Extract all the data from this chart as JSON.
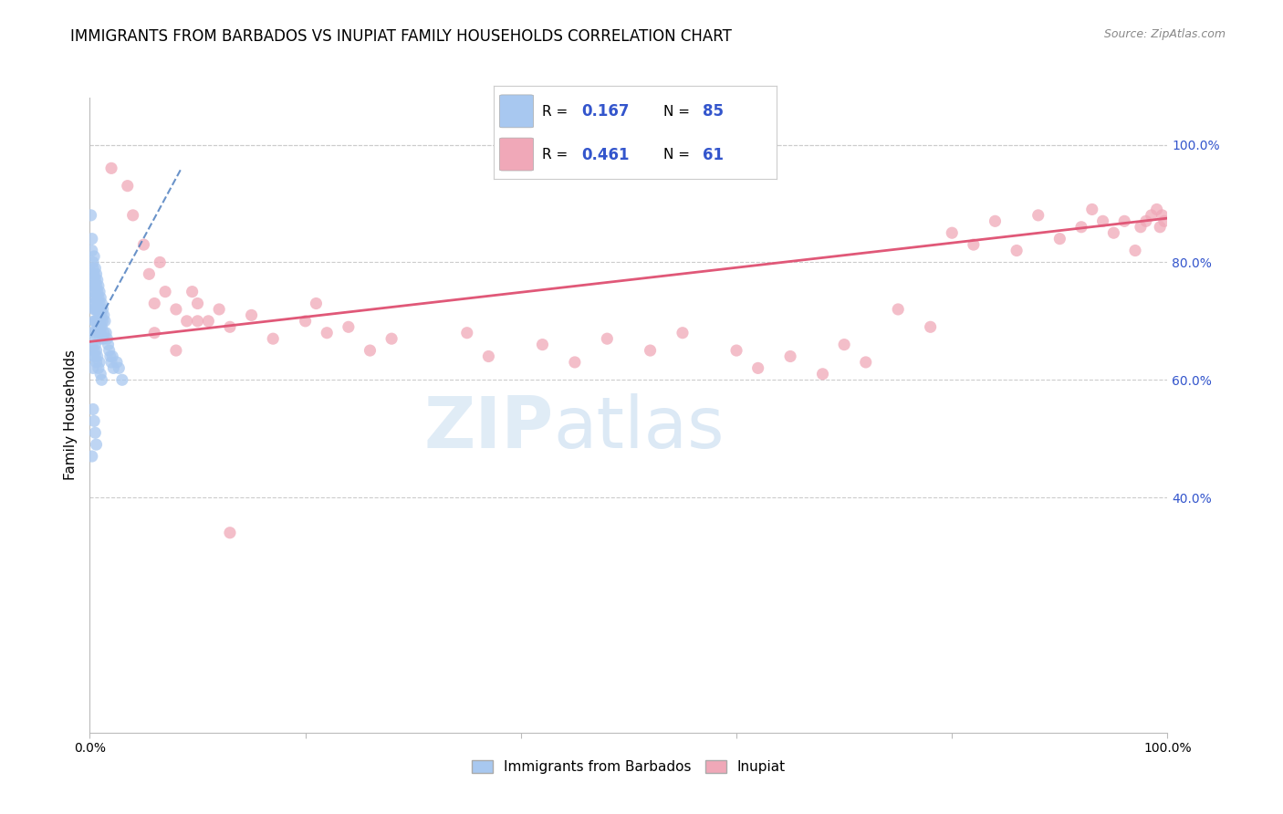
{
  "title": "IMMIGRANTS FROM BARBADOS VS INUPIAT FAMILY HOUSEHOLDS CORRELATION CHART",
  "source": "Source: ZipAtlas.com",
  "ylabel": "Family Households",
  "legend_label1": "Immigrants from Barbados",
  "legend_label2": "Inupiat",
  "blue_color": "#a8c8f0",
  "pink_color": "#f0a8b8",
  "blue_line_color": "#5080c0",
  "pink_line_color": "#e05878",
  "xmin": 0.0,
  "xmax": 1.0,
  "ymin": 0.0,
  "ymax": 1.08,
  "grid_color": "#cccccc",
  "bg_color": "#ffffff",
  "title_fontsize": 12,
  "label_fontsize": 11,
  "tick_fontsize": 10,
  "legend_r1": "0.167",
  "legend_n1": "85",
  "legend_r2": "0.461",
  "legend_n2": "61",
  "blue_trend": [
    0.001,
    0.675,
    0.085,
    0.96
  ],
  "pink_trend": [
    0.0,
    0.665,
    1.0,
    0.875
  ],
  "ytick_values": [
    0.4,
    0.6,
    0.8,
    1.0
  ],
  "ytick_labels": [
    "40.0%",
    "60.0%",
    "80.0%",
    "100.0%"
  ],
  "blue_x": [
    0.001,
    0.002,
    0.002,
    0.003,
    0.003,
    0.003,
    0.003,
    0.003,
    0.003,
    0.004,
    0.004,
    0.004,
    0.004,
    0.004,
    0.004,
    0.004,
    0.005,
    0.005,
    0.005,
    0.005,
    0.005,
    0.005,
    0.006,
    0.006,
    0.006,
    0.006,
    0.006,
    0.007,
    0.007,
    0.007,
    0.007,
    0.008,
    0.008,
    0.008,
    0.008,
    0.008,
    0.009,
    0.009,
    0.009,
    0.009,
    0.009,
    0.01,
    0.01,
    0.01,
    0.01,
    0.011,
    0.011,
    0.011,
    0.012,
    0.012,
    0.012,
    0.013,
    0.013,
    0.014,
    0.015,
    0.016,
    0.017,
    0.018,
    0.019,
    0.02,
    0.021,
    0.022,
    0.025,
    0.027,
    0.03,
    0.001,
    0.002,
    0.003,
    0.003,
    0.004,
    0.004,
    0.005,
    0.005,
    0.006,
    0.006,
    0.007,
    0.008,
    0.009,
    0.01,
    0.011,
    0.003,
    0.004,
    0.005,
    0.006,
    0.002
  ],
  "blue_y": [
    0.88,
    0.82,
    0.84,
    0.8,
    0.79,
    0.78,
    0.77,
    0.76,
    0.75,
    0.81,
    0.78,
    0.76,
    0.74,
    0.73,
    0.72,
    0.7,
    0.79,
    0.77,
    0.75,
    0.73,
    0.72,
    0.7,
    0.78,
    0.76,
    0.74,
    0.72,
    0.7,
    0.77,
    0.75,
    0.73,
    0.69,
    0.76,
    0.74,
    0.72,
    0.7,
    0.68,
    0.75,
    0.73,
    0.71,
    0.69,
    0.67,
    0.74,
    0.72,
    0.7,
    0.68,
    0.73,
    0.71,
    0.69,
    0.72,
    0.7,
    0.67,
    0.71,
    0.68,
    0.7,
    0.68,
    0.67,
    0.66,
    0.65,
    0.64,
    0.63,
    0.64,
    0.62,
    0.63,
    0.62,
    0.6,
    0.68,
    0.66,
    0.64,
    0.62,
    0.68,
    0.65,
    0.66,
    0.64,
    0.65,
    0.63,
    0.64,
    0.62,
    0.63,
    0.61,
    0.6,
    0.55,
    0.53,
    0.51,
    0.49,
    0.47
  ],
  "pink_x": [
    0.02,
    0.035,
    0.04,
    0.05,
    0.055,
    0.06,
    0.065,
    0.07,
    0.08,
    0.09,
    0.095,
    0.1,
    0.11,
    0.12,
    0.13,
    0.15,
    0.17,
    0.2,
    0.21,
    0.22,
    0.24,
    0.26,
    0.28,
    0.35,
    0.37,
    0.42,
    0.45,
    0.48,
    0.52,
    0.55,
    0.6,
    0.62,
    0.65,
    0.68,
    0.7,
    0.72,
    0.75,
    0.78,
    0.8,
    0.82,
    0.84,
    0.86,
    0.88,
    0.9,
    0.92,
    0.93,
    0.94,
    0.95,
    0.96,
    0.97,
    0.975,
    0.98,
    0.985,
    0.99,
    0.993,
    0.995,
    0.997,
    0.06,
    0.08,
    0.1,
    0.13
  ],
  "pink_y": [
    0.96,
    0.93,
    0.88,
    0.83,
    0.78,
    0.73,
    0.8,
    0.75,
    0.72,
    0.7,
    0.75,
    0.73,
    0.7,
    0.72,
    0.69,
    0.71,
    0.67,
    0.7,
    0.73,
    0.68,
    0.69,
    0.65,
    0.67,
    0.68,
    0.64,
    0.66,
    0.63,
    0.67,
    0.65,
    0.68,
    0.65,
    0.62,
    0.64,
    0.61,
    0.66,
    0.63,
    0.72,
    0.69,
    0.85,
    0.83,
    0.87,
    0.82,
    0.88,
    0.84,
    0.86,
    0.89,
    0.87,
    0.85,
    0.87,
    0.82,
    0.86,
    0.87,
    0.88,
    0.89,
    0.86,
    0.88,
    0.87,
    0.68,
    0.65,
    0.7,
    0.34
  ]
}
